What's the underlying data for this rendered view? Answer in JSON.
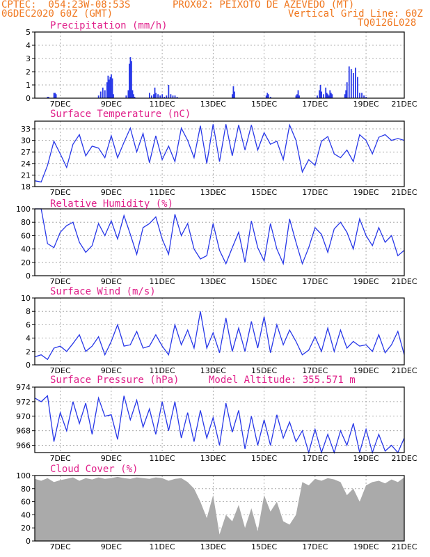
{
  "header": {
    "line1_left": "CPTEC:  054:23W-08:53S",
    "line1_right": "PROX02: PEIXOTO DE AZEVEDO (MT)",
    "line2_left": "06DEC2020 60Z (GMT)",
    "line2_right": "Vertical Grid Line: 60Z",
    "line3_right": "TQ0126L028"
  },
  "x_tick_labels": [
    "7DEC",
    "9DEC",
    "11DEC",
    "13DEC",
    "15DEC",
    "17DEC",
    "19DEC",
    "21DEC"
  ],
  "colors": {
    "line": "#2838e8",
    "cloud": "#aaaaaa",
    "title": "#e0208a",
    "header": "#f07820",
    "grid": "#999999"
  },
  "chart_data": [
    {
      "type": "bar",
      "title": "Precipitation (mm/h)",
      "ylim": [
        0,
        5
      ],
      "yticks": [
        "0",
        "1",
        "2",
        "3",
        "4",
        "5"
      ],
      "x_unit": "hours since 06DEC2020 (x axis runs to 21DEC)",
      "xlim": [
        0,
        348
      ],
      "x": [
        12,
        13,
        18,
        19,
        20,
        60,
        62,
        64,
        66,
        68,
        69,
        70,
        71,
        72,
        73,
        74,
        86,
        88,
        89,
        90,
        91,
        92,
        93,
        94,
        108,
        110,
        112,
        113,
        114,
        116,
        118,
        120,
        122,
        124,
        126,
        128,
        130,
        132,
        134,
        186,
        187,
        188,
        218,
        219,
        220,
        222,
        246,
        247,
        248,
        249,
        266,
        268,
        269,
        270,
        272,
        274,
        275,
        276,
        277,
        278,
        279,
        280,
        292,
        293,
        294,
        296,
        298,
        300,
        302,
        304,
        306,
        308,
        310,
        312
      ],
      "values": [
        0.1,
        0.1,
        0.4,
        0.4,
        0.3,
        0.2,
        0.5,
        0.8,
        0.6,
        1.2,
        1.7,
        1.4,
        1.6,
        1.8,
        1.5,
        0.3,
        0.2,
        0.6,
        2.6,
        3.1,
        2.8,
        0.6,
        0.3,
        0.1,
        0.4,
        0.2,
        0.3,
        0.8,
        0.4,
        0.3,
        0.2,
        0.3,
        0.1,
        0.2,
        1.0,
        0.3,
        0.2,
        0.2,
        0.1,
        0.3,
        0.9,
        0.5,
        0.2,
        0.4,
        0.3,
        0.1,
        0.2,
        0.3,
        0.6,
        0.2,
        0.2,
        0.6,
        1.0,
        0.5,
        0.3,
        0.8,
        0.4,
        0.3,
        0.2,
        0.6,
        0.4,
        0.3,
        0.3,
        0.6,
        1.2,
        2.4,
        2.2,
        1.9,
        2.3,
        1.6,
        0.4,
        0.4,
        0.2,
        0.1
      ]
    },
    {
      "type": "line",
      "title": "Surface Temperature (nC)",
      "ylim": [
        18,
        35
      ],
      "yticks": [
        "18",
        "21",
        "24",
        "27",
        "30",
        "33"
      ],
      "x_unit": "hours since 06DEC2020 (x axis runs to 21DEC)",
      "xlim": [
        0,
        348
      ],
      "x": [
        0,
        6,
        12,
        18,
        24,
        30,
        36,
        42,
        48,
        54,
        60,
        66,
        72,
        78,
        84,
        90,
        96,
        102,
        108,
        114,
        120,
        126,
        132,
        138,
        144,
        150,
        156,
        162,
        168,
        174,
        180,
        186,
        192,
        198,
        204,
        210,
        216,
        222,
        228,
        234,
        240,
        246,
        252,
        258,
        264,
        270,
        276,
        282,
        288,
        294,
        300,
        306,
        312,
        318,
        324,
        330,
        336,
        342,
        348
      ],
      "values": [
        19.5,
        19.2,
        23.5,
        29.8,
        26.5,
        23.0,
        29.0,
        31.5,
        26.0,
        28.5,
        28.0,
        25.5,
        31.2,
        25.5,
        29.5,
        33.2,
        27.0,
        31.8,
        24.2,
        31.2,
        25.0,
        28.5,
        24.5,
        33.2,
        30.0,
        25.5,
        33.8,
        24.0,
        34.2,
        24.5,
        34.2,
        26.0,
        34.0,
        27.5,
        34.0,
        27.5,
        32.0,
        29.0,
        29.8,
        25.0,
        34.0,
        30.0,
        21.8,
        25.0,
        23.5,
        29.8,
        31.0,
        26.5,
        25.5,
        27.5,
        24.5,
        31.5,
        30.0,
        26.5,
        30.8,
        31.5,
        30.0,
        30.5,
        30.0
      ]
    },
    {
      "type": "line",
      "title": "Relative Humidity (%)",
      "ylim": [
        0,
        100
      ],
      "yticks": [
        "0",
        "20",
        "40",
        "60",
        "80",
        "100"
      ],
      "x_unit": "hours since 06DEC2020 (x axis runs to 21DEC)",
      "xlim": [
        0,
        348
      ],
      "x": [
        0,
        6,
        12,
        18,
        24,
        30,
        36,
        42,
        48,
        54,
        60,
        66,
        72,
        78,
        84,
        90,
        96,
        102,
        108,
        114,
        120,
        126,
        132,
        138,
        144,
        150,
        156,
        162,
        168,
        174,
        180,
        186,
        192,
        198,
        204,
        210,
        216,
        222,
        228,
        234,
        240,
        246,
        252,
        258,
        264,
        270,
        276,
        282,
        288,
        294,
        300,
        306,
        312,
        318,
        324,
        330,
        336,
        342,
        348
      ],
      "values": [
        100,
        100,
        48,
        42,
        65,
        75,
        80,
        50,
        35,
        45,
        78,
        60,
        82,
        55,
        90,
        62,
        32,
        72,
        78,
        88,
        55,
        32,
        92,
        60,
        78,
        40,
        25,
        30,
        78,
        38,
        18,
        42,
        65,
        20,
        82,
        42,
        22,
        78,
        40,
        18,
        85,
        50,
        18,
        42,
        72,
        62,
        35,
        70,
        80,
        65,
        40,
        85,
        60,
        45,
        72,
        50,
        60,
        30,
        38
      ]
    },
    {
      "type": "line",
      "title": "Surface Wind (m/s)",
      "ylim": [
        0,
        10
      ],
      "yticks": [
        "0",
        "2",
        "4",
        "6",
        "8",
        "10"
      ],
      "x_unit": "hours since 06DEC2020 (x axis runs to 21DEC)",
      "xlim": [
        0,
        348
      ],
      "x": [
        0,
        6,
        12,
        18,
        24,
        30,
        36,
        42,
        48,
        54,
        60,
        66,
        72,
        78,
        84,
        90,
        96,
        102,
        108,
        114,
        120,
        126,
        132,
        138,
        144,
        150,
        156,
        162,
        168,
        174,
        180,
        186,
        192,
        198,
        204,
        210,
        216,
        222,
        228,
        234,
        240,
        246,
        252,
        258,
        264,
        270,
        276,
        282,
        288,
        294,
        300,
        306,
        312,
        318,
        324,
        330,
        336,
        342,
        348
      ],
      "values": [
        1.2,
        1.5,
        0.8,
        2.5,
        2.8,
        2.0,
        3.2,
        4.5,
        2.0,
        2.8,
        4.2,
        1.5,
        3.5,
        6.0,
        2.8,
        3.0,
        5.0,
        2.5,
        2.8,
        4.5,
        2.8,
        1.5,
        6.0,
        3.0,
        5.2,
        2.5,
        8.0,
        2.5,
        4.8,
        1.8,
        7.0,
        2.0,
        5.5,
        2.0,
        6.5,
        2.5,
        7.2,
        1.8,
        6.0,
        3.0,
        5.2,
        3.5,
        1.5,
        2.2,
        4.2,
        2.0,
        5.5,
        2.0,
        5.2,
        2.5,
        3.5,
        2.8,
        3.0,
        2.0,
        4.5,
        1.8,
        3.0,
        5.0,
        1.5
      ]
    },
    {
      "type": "line",
      "title": "Surface Pressure (hPa)",
      "annotation": "Model Altitude: 355.571 m",
      "ylim": [
        965,
        974
      ],
      "yticks": [
        "966",
        "968",
        "970",
        "972",
        "974"
      ],
      "x_unit": "hours since 06DEC2020 (x axis runs to 21DEC)",
      "xlim": [
        0,
        348
      ],
      "x": [
        0,
        6,
        12,
        18,
        24,
        30,
        36,
        42,
        48,
        54,
        60,
        66,
        72,
        78,
        84,
        90,
        96,
        102,
        108,
        114,
        120,
        126,
        132,
        138,
        144,
        150,
        156,
        162,
        168,
        174,
        180,
        186,
        192,
        198,
        204,
        210,
        216,
        222,
        228,
        234,
        240,
        246,
        252,
        258,
        264,
        270,
        276,
        282,
        288,
        294,
        300,
        306,
        312,
        318,
        324,
        330,
        336,
        342,
        348
      ],
      "values": [
        972.5,
        972.0,
        972.8,
        966.5,
        970.5,
        968.0,
        972.0,
        969.0,
        971.8,
        967.5,
        972.5,
        970.0,
        970.2,
        966.8,
        972.8,
        969.5,
        972.2,
        968.5,
        971.0,
        967.5,
        972.0,
        968.0,
        972.0,
        967.0,
        970.5,
        966.5,
        970.8,
        967.0,
        969.8,
        966.0,
        971.8,
        967.8,
        970.8,
        965.5,
        970.0,
        966.0,
        969.5,
        966.0,
        970.2,
        967.0,
        969.2,
        966.5,
        968.0,
        965.0,
        968.2,
        964.5,
        967.5,
        965.0,
        968.0,
        966.0,
        969.0,
        965.0,
        968.2,
        964.8,
        967.5,
        965.2,
        966.0,
        964.5,
        967.0
      ]
    },
    {
      "type": "area",
      "title": "Cloud Cover (%)",
      "ylim": [
        0,
        100
      ],
      "yticks": [
        "0",
        "20",
        "40",
        "60",
        "80",
        "100"
      ],
      "x_unit": "hours since 06DEC2020 (x axis runs to 21DEC)",
      "xlim": [
        0,
        348
      ],
      "x": [
        0,
        6,
        12,
        18,
        24,
        30,
        36,
        42,
        48,
        54,
        60,
        66,
        72,
        78,
        84,
        90,
        96,
        102,
        108,
        114,
        120,
        126,
        132,
        138,
        144,
        150,
        156,
        162,
        168,
        174,
        180,
        186,
        192,
        198,
        204,
        210,
        216,
        222,
        228,
        234,
        240,
        246,
        252,
        258,
        264,
        270,
        276,
        282,
        288,
        294,
        300,
        306,
        312,
        318,
        324,
        330,
        336,
        342,
        348
      ],
      "values": [
        95,
        92,
        96,
        90,
        93,
        95,
        97,
        92,
        96,
        94,
        97,
        95,
        96,
        98,
        96,
        95,
        97,
        96,
        95,
        97,
        96,
        92,
        95,
        96,
        90,
        80,
        60,
        35,
        70,
        10,
        40,
        30,
        55,
        20,
        50,
        15,
        70,
        45,
        60,
        30,
        25,
        40,
        90,
        85,
        95,
        92,
        96,
        94,
        90,
        70,
        80,
        60,
        85,
        90,
        92,
        88,
        94,
        90,
        97
      ]
    }
  ]
}
